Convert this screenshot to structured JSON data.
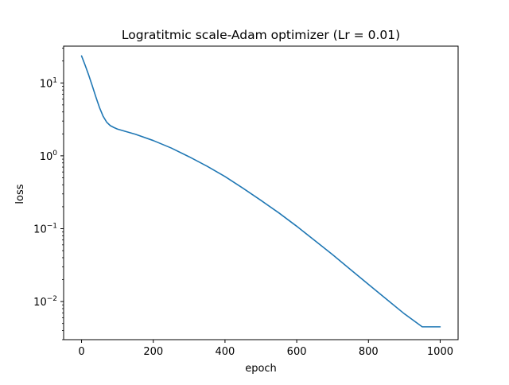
{
  "chart_data": {
    "type": "line",
    "title": "Logratitmic scale-Adam optimizer (Lr = 0.01)",
    "xlabel": "epoch",
    "ylabel": "loss",
    "xscale": "linear",
    "yscale": "log",
    "xlim": [
      -50,
      1050
    ],
    "ylim": [
      0.003,
      32
    ],
    "xticks": [
      0,
      200,
      400,
      600,
      800,
      1000
    ],
    "yticks": [
      {
        "value": 0.01,
        "base": "10",
        "exp": "−2"
      },
      {
        "value": 0.1,
        "base": "10",
        "exp": "−1"
      },
      {
        "value": 1,
        "base": "10",
        "exp": "0"
      },
      {
        "value": 10,
        "base": "10",
        "exp": "1"
      }
    ],
    "grid": false,
    "line_color": "#1f77b4",
    "series": [
      {
        "x": [
          0,
          10,
          20,
          30,
          40,
          50,
          60,
          70,
          80,
          90,
          100,
          120,
          150,
          200,
          250,
          300,
          350,
          400,
          450,
          500,
          550,
          600,
          650,
          700,
          750,
          800,
          850,
          900,
          950,
          1000
        ],
        "y": [
          23.5,
          17.5,
          12.8,
          9.1,
          6.4,
          4.6,
          3.5,
          2.9,
          2.6,
          2.45,
          2.33,
          2.18,
          1.98,
          1.62,
          1.28,
          0.97,
          0.72,
          0.52,
          0.36,
          0.245,
          0.165,
          0.108,
          0.069,
          0.044,
          0.0275,
          0.0172,
          0.0108,
          0.0068,
          0.0045,
          0.0045
        ]
      }
    ]
  }
}
